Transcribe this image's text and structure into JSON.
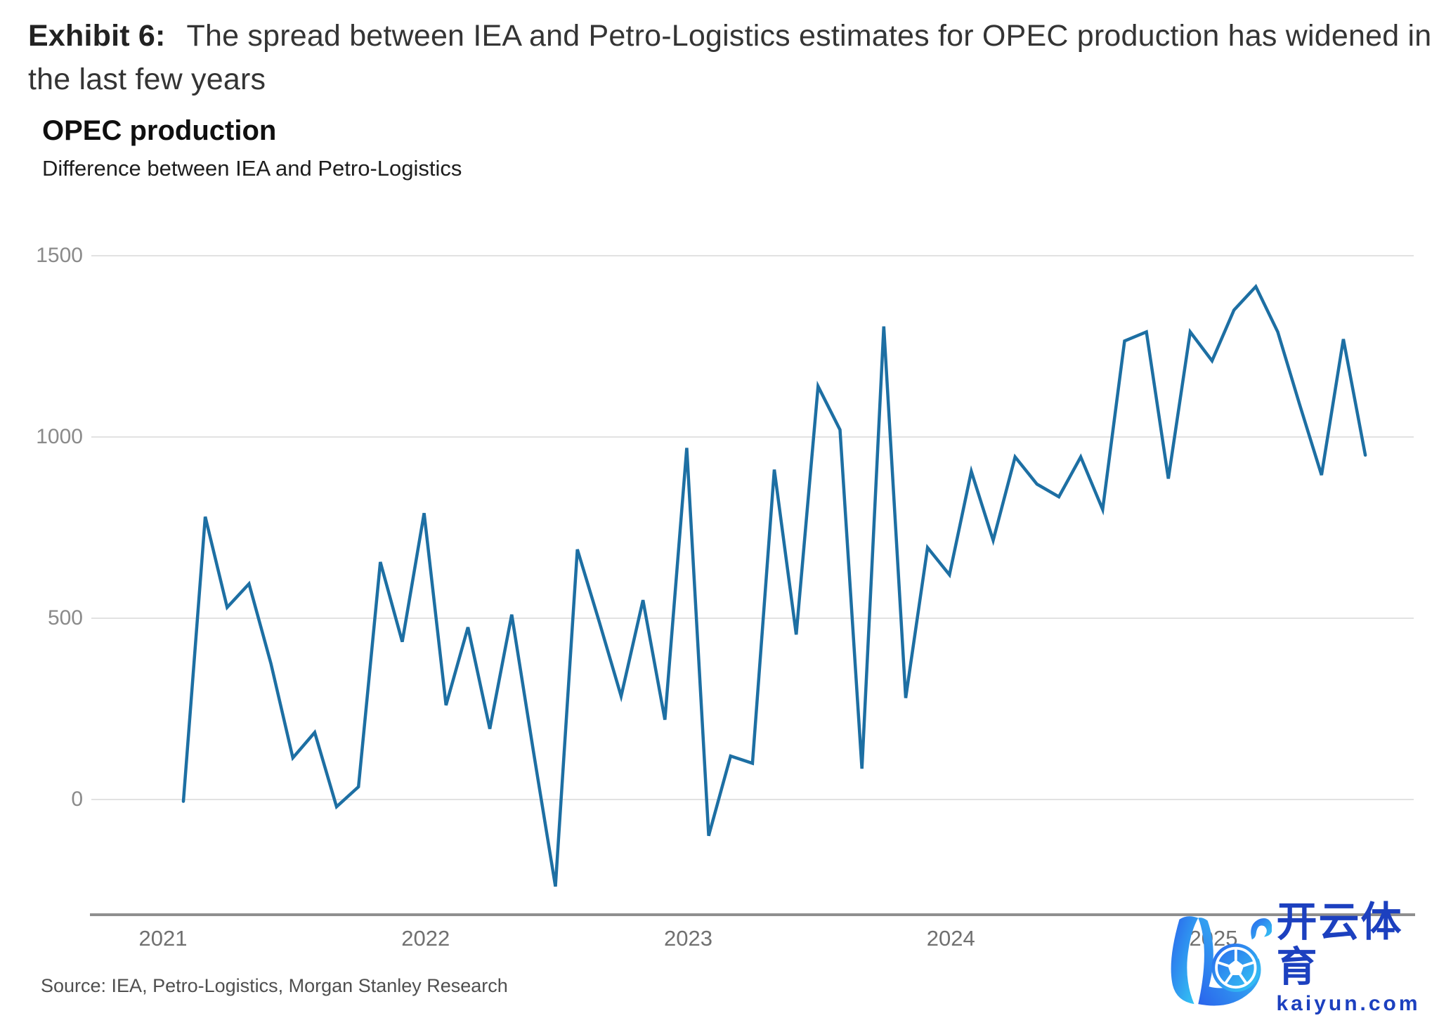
{
  "exhibit": {
    "label": "Exhibit 6:",
    "title": "The spread between IEA and Petro-Logistics estimates for OPEC production has widened in the last few years"
  },
  "source": "Source: IEA, Petro-Logistics, Morgan Stanley Research",
  "watermark": {
    "brand_cjk": "开云体育",
    "domain": "kaiyun.com",
    "logo_icon": "kaiyun-k-soccer-ball-logo",
    "color": "#1c40bf",
    "gradient": [
      "#2a63ec",
      "#35cdf4"
    ]
  },
  "colors": {
    "line": "#1d6fa3",
    "gridline": "#e2e2e2",
    "axis": "#8f8f8f"
  },
  "chart_data": {
    "type": "line",
    "title": "OPEC production",
    "subtitle": "Difference between IEA and Petro-Logistics",
    "series_name": "IEA minus Petro-Logistics",
    "frequency": "monthly",
    "x_start": "2021-02",
    "x_end": "2025-08",
    "x_tick_labels": [
      "2021",
      "2022",
      "2023",
      "2024",
      "2025"
    ],
    "y_ticks": [
      0,
      500,
      1000,
      1500
    ],
    "ylim": [
      -300,
      1500
    ],
    "grid": "horizontal",
    "legend": "none",
    "values": [
      -5,
      780,
      530,
      595,
      375,
      115,
      185,
      -20,
      35,
      655,
      435,
      790,
      260,
      475,
      195,
      510,
      130,
      -240,
      690,
      490,
      285,
      550,
      220,
      970,
      -100,
      120,
      100,
      910,
      455,
      1140,
      1020,
      85,
      1305,
      280,
      695,
      620,
      905,
      715,
      945,
      870,
      835,
      945,
      800,
      1265,
      1290,
      885,
      1290,
      1210,
      1350,
      1415,
      1290,
      1090,
      895,
      1270,
      950
    ]
  }
}
